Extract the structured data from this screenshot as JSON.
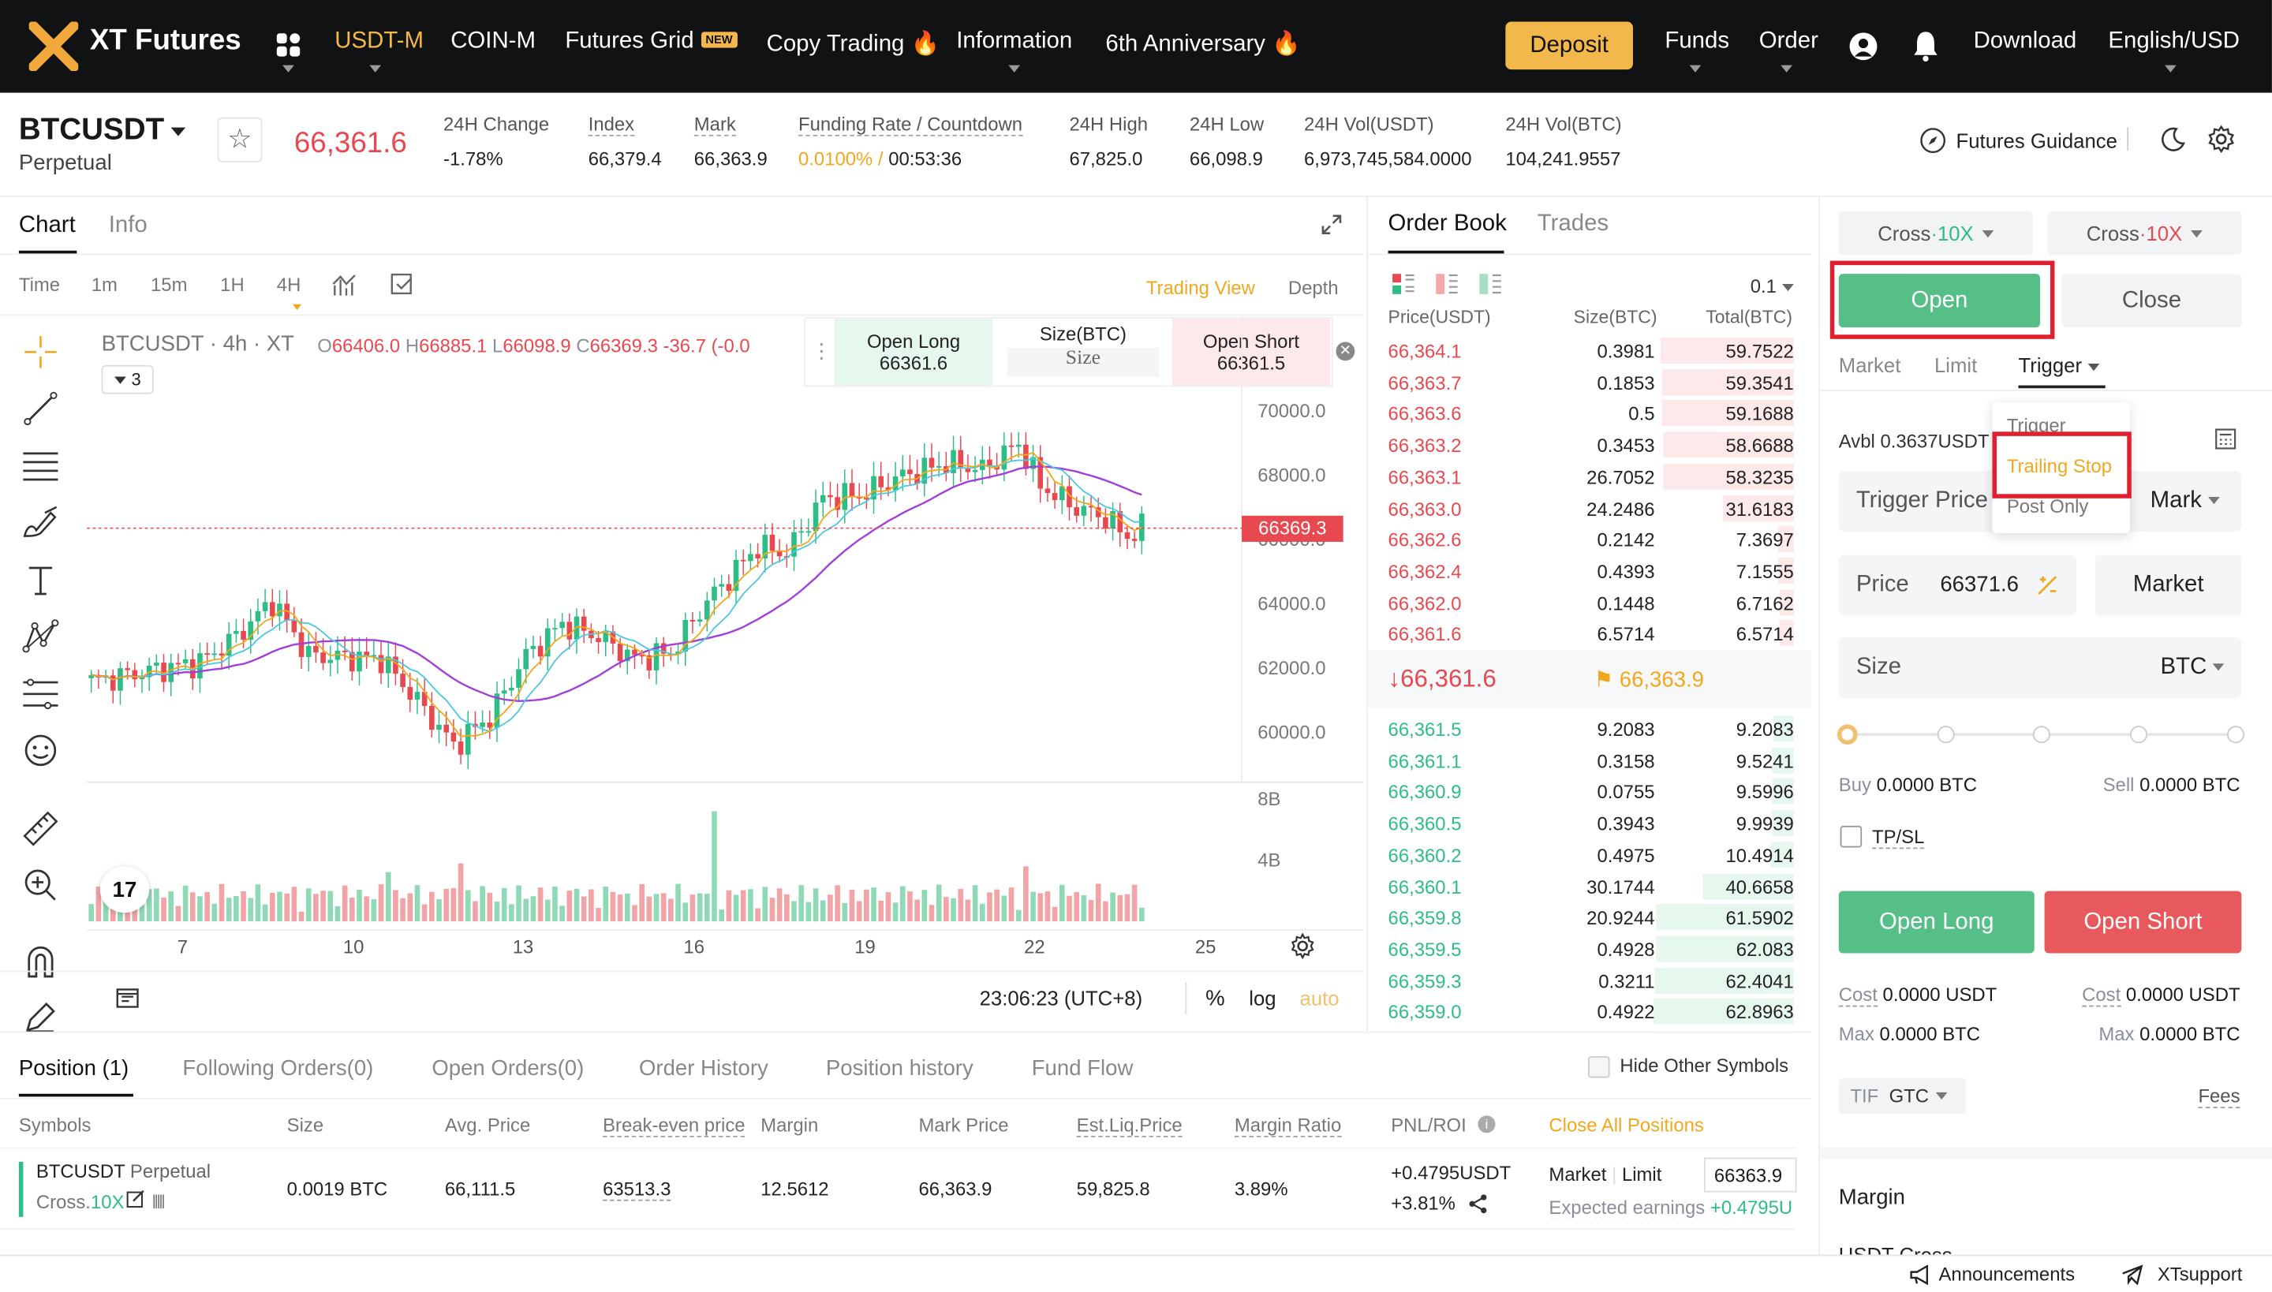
{
  "nav": {
    "logo": "XT Futures",
    "items": [
      "USDT-M",
      "COIN-M",
      "Futures Grid",
      "Copy Trading",
      "Information",
      "6th Anniversary"
    ],
    "new_badge": "NEW",
    "deposit": "Deposit",
    "funds": "Funds",
    "order": "Order",
    "download": "Download",
    "language": "English/USD"
  },
  "ticker": {
    "symbol": "BTCUSDT",
    "subtype": "Perpetual",
    "price": "66,361.6",
    "change_label": "24H Change",
    "change": "-1.78%",
    "index_label": "Index",
    "index": "66,379.4",
    "mark_label": "Mark",
    "mark": "66,363.9",
    "funding_label": "Funding Rate / Countdown",
    "funding_rate": "0.0100% /",
    "countdown": "00:53:36",
    "high_label": "24H High",
    "high": "67,825.0",
    "low_label": "24H Low",
    "low": "66,098.9",
    "vol_usdt_label": "24H Vol(USDT)",
    "vol_usdt": "6,973,745,584.0000",
    "vol_btc_label": "24H Vol(BTC)",
    "vol_btc": "104,241.9557",
    "guidance": "Futures Guidance"
  },
  "chart_panel": {
    "tabs": [
      "Chart",
      "Info"
    ],
    "timeframes": [
      "Time",
      "1m",
      "15m",
      "1H",
      "4H"
    ],
    "active_timeframe": "4H",
    "trading_view": "Trading View",
    "depth": "Depth",
    "legend_symbol": "BTCUSDT · 4h · XT",
    "ohlc": {
      "o_label": "O",
      "o": "66406.0",
      "h_label": "H",
      "h": "66885.1",
      "l_label": "L",
      "l": "66098.9",
      "c_label": "C",
      "c": "66369.3",
      "chg": "-36.7 (-0.0"
    },
    "indicator_count": "3",
    "quick_long_label": "Open Long",
    "quick_long_price": "66361.6",
    "quick_size_label": "Size(BTC)",
    "quick_size_placeholder": "Size",
    "quick_short_label": "Open Short",
    "quick_short_price": "66361.5",
    "y_ticks": [
      "70000.0",
      "68000.0",
      "66000.0",
      "64000.0",
      "62000.0",
      "60000.0"
    ],
    "last_price_tag": "66369.3",
    "vol_ticks": [
      "8B",
      "4B"
    ],
    "x_ticks": [
      "7",
      "10",
      "13",
      "16",
      "19",
      "22",
      "25"
    ],
    "clock": "23:06:23 (UTC+8)",
    "percent": "%",
    "log": "log",
    "auto": "auto",
    "colors": {
      "up": "#2ebd85",
      "down": "#e8484f",
      "ma_fast": "#f0a81f",
      "ma_mid": "#4ec7e0",
      "ma_slow": "#a23fd8"
    }
  },
  "order_book": {
    "tabs": [
      "Order Book",
      "Trades"
    ],
    "precision": "0.1",
    "headers": [
      "Price(USDT)",
      "Size(BTC)",
      "Total(BTC)"
    ],
    "asks": [
      [
        "66,364.1",
        "0.3981",
        "59.7522"
      ],
      [
        "66,363.7",
        "0.1853",
        "59.3541"
      ],
      [
        "66,363.6",
        "0.5",
        "59.1688"
      ],
      [
        "66,363.2",
        "0.3453",
        "58.6688"
      ],
      [
        "66,363.1",
        "26.7052",
        "58.3235"
      ],
      [
        "66,363.0",
        "24.2486",
        "31.6183"
      ],
      [
        "66,362.6",
        "0.2142",
        "7.3697"
      ],
      [
        "66,362.4",
        "0.4393",
        "7.1555"
      ],
      [
        "66,362.0",
        "0.1448",
        "6.7162"
      ],
      [
        "66,361.6",
        "6.5714",
        "6.5714"
      ]
    ],
    "last_price": "66,361.6",
    "mark_price": "66,363.9",
    "bids": [
      [
        "66,361.5",
        "9.2083",
        "9.2083"
      ],
      [
        "66,361.1",
        "0.3158",
        "9.5241"
      ],
      [
        "66,360.9",
        "0.0755",
        "9.5996"
      ],
      [
        "66,360.5",
        "0.3943",
        "9.9939"
      ],
      [
        "66,360.2",
        "0.4975",
        "10.4914"
      ],
      [
        "66,360.1",
        "30.1744",
        "40.6658"
      ],
      [
        "66,359.8",
        "20.9244",
        "61.5902"
      ],
      [
        "66,359.5",
        "0.4928",
        "62.083"
      ],
      [
        "66,359.3",
        "0.3211",
        "62.4041"
      ],
      [
        "66,359.0",
        "0.4922",
        "62.8963"
      ]
    ]
  },
  "trade_panel": {
    "margin_mode_left": "Cross",
    "leverage_left": "10X",
    "margin_mode_right": "Cross",
    "leverage_right": "10X",
    "open": "Open",
    "close": "Close",
    "order_types": [
      "Market",
      "Limit",
      "Trigger"
    ],
    "dropdown": [
      "Trigger",
      "Trailing Stop",
      "Post Only"
    ],
    "avbl_label": "Avbl",
    "avbl": "0.3637USDT",
    "trigger_price_label": "Trigger Price",
    "trigger_ref": "Mark",
    "price_label": "Price",
    "price_value": "66371.6",
    "market_button": "Market",
    "size_label": "Size",
    "size_unit": "BTC",
    "buy_label": "Buy",
    "buy_value": "0.0000 BTC",
    "sell_label": "Sell",
    "sell_value": "0.0000 BTC",
    "tpsl": "TP/SL",
    "open_long": "Open Long",
    "open_short": "Open Short",
    "cost_label": "Cost",
    "cost_long": "0.0000 USDT",
    "cost_short": "0.0000 USDT",
    "max_label": "Max",
    "max_long": "0.0000 BTC",
    "max_short": "0.0000 BTC",
    "tif_label": "TIF",
    "tif_value": "GTC",
    "fees": "Fees",
    "margin_title": "Margin",
    "margin_sub": "USDT Cross"
  },
  "positions": {
    "tabs": [
      "Position (1)",
      "Following Orders(0)",
      "Open Orders(0)",
      "Order History",
      "Position history",
      "Fund Flow"
    ],
    "hide_other": "Hide Other Symbols",
    "headers": [
      "Symbols",
      "Size",
      "Avg. Price",
      "Break-even price",
      "Margin",
      "Mark Price",
      "Est.Liq.Price",
      "Margin Ratio",
      "PNL/ROI"
    ],
    "close_all": "Close All Positions",
    "row": {
      "symbol": "BTCUSDT",
      "type": "Perpetual",
      "mode": "Cross.",
      "lev": "10X",
      "size": "0.0019 BTC",
      "avg": "66,111.5",
      "breakeven": "63513.3",
      "margin": "12.5612",
      "mark": "66,363.9",
      "liq": "59,825.8",
      "ratio": "3.89%",
      "pnl": "+0.4795USDT",
      "roi": "+3.81%",
      "market": "Market",
      "limit": "Limit",
      "close_price": "66363.9",
      "expected_label": "Expected earnings",
      "expected": "+0.4795U"
    }
  },
  "footer": {
    "announcements": "Announcements",
    "support": "XTsupport"
  }
}
